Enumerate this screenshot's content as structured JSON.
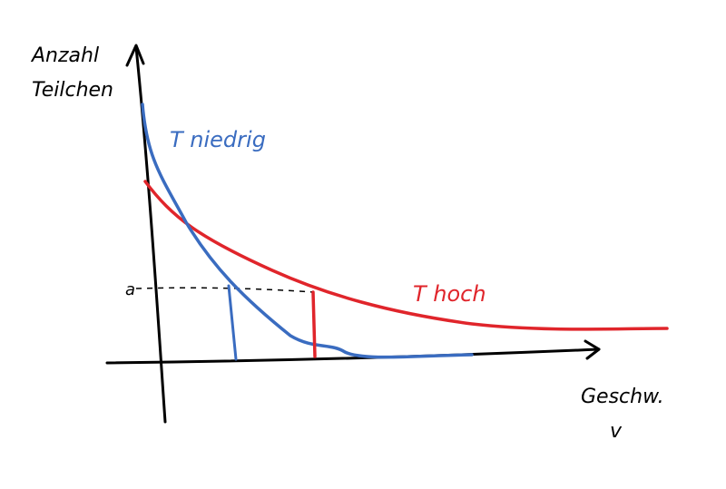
{
  "axes": {
    "y_label": [
      "Anzahl",
      "Teilchen"
    ],
    "x_label": "Geschw.",
    "x_symbol": "v"
  },
  "curves": [
    {
      "label": "T niedrig"
    },
    {
      "label": "T hoch"
    }
  ],
  "marker": "a"
}
